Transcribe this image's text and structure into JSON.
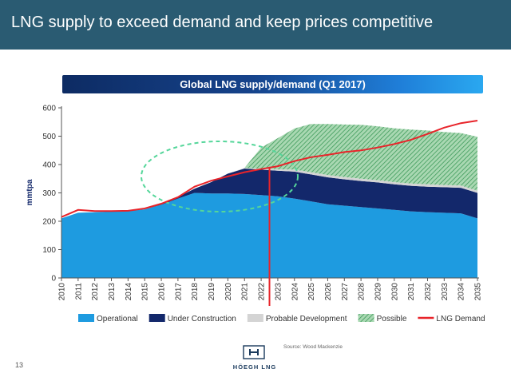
{
  "header": {
    "title": "LNG supply to exceed demand and keep prices competitive"
  },
  "banner": {
    "title": "Global LNG supply/demand (Q1 2017)"
  },
  "footer": {
    "page_number": "13",
    "source": "Source: Wood Mackenzie",
    "logo_text": "HÖEGH LNG"
  },
  "colors": {
    "header_bg": "#2a5b72",
    "operational": "#1e9be0",
    "under_construction": "#13286b",
    "probable_development": "#d4d4d4",
    "possible": "#7fc28e",
    "demand": "#e8242a",
    "ellipse": "#55d69a"
  },
  "chart_data": {
    "type": "area",
    "title": "Global LNG supply/demand (Q1 2017)",
    "ylabel": "mmtpa",
    "xlabel": "",
    "ylim": [
      0,
      600
    ],
    "yticks": [
      0,
      100,
      200,
      300,
      400,
      500,
      600
    ],
    "x": [
      "2010",
      "2011",
      "2012",
      "2013",
      "2014",
      "2015",
      "2016",
      "2017",
      "2018",
      "2019",
      "2020",
      "2021",
      "2022",
      "2023",
      "2024",
      "2025",
      "2026",
      "2027",
      "2028",
      "2029",
      "2030",
      "2031",
      "2032",
      "2033",
      "2034",
      "2035"
    ],
    "stacked": true,
    "series": [
      {
        "name": "Operational",
        "kind": "area",
        "color": "#1e9be0",
        "values": [
          210,
          230,
          232,
          235,
          236,
          242,
          258,
          280,
          300,
          298,
          298,
          296,
          292,
          288,
          280,
          270,
          260,
          255,
          250,
          245,
          240,
          235,
          232,
          230,
          228,
          210
        ]
      },
      {
        "name": "Under Construction",
        "kind": "area",
        "color": "#13286b",
        "values": [
          0,
          0,
          0,
          0,
          0,
          0,
          2,
          5,
          15,
          40,
          70,
          90,
          90,
          90,
          95,
          95,
          95,
          93,
          92,
          92,
          90,
          90,
          90,
          90,
          90,
          90
        ]
      },
      {
        "name": "Probable Development",
        "kind": "area",
        "color": "#d4d4d4",
        "values": [
          0,
          0,
          0,
          0,
          0,
          0,
          0,
          0,
          0,
          0,
          0,
          2,
          3,
          5,
          7,
          8,
          8,
          8,
          8,
          8,
          8,
          8,
          8,
          8,
          8,
          8
        ]
      },
      {
        "name": "Possible",
        "kind": "area",
        "color": "#7fc28e",
        "values": [
          0,
          0,
          0,
          0,
          0,
          0,
          0,
          0,
          0,
          0,
          0,
          0,
          75,
          110,
          145,
          170,
          180,
          185,
          190,
          190,
          190,
          190,
          190,
          187,
          185,
          190
        ]
      },
      {
        "name": "LNG Demand",
        "kind": "line",
        "color": "#e8242a",
        "values": [
          215,
          240,
          236,
          236,
          237,
          245,
          262,
          285,
          322,
          343,
          358,
          373,
          384,
          394,
          412,
          426,
          434,
          444,
          450,
          460,
          472,
          487,
          508,
          530,
          546,
          555
        ]
      }
    ],
    "annotations": {
      "vertical_marker_x": "2022.5"
    },
    "legend": "bottom",
    "grid": false
  }
}
